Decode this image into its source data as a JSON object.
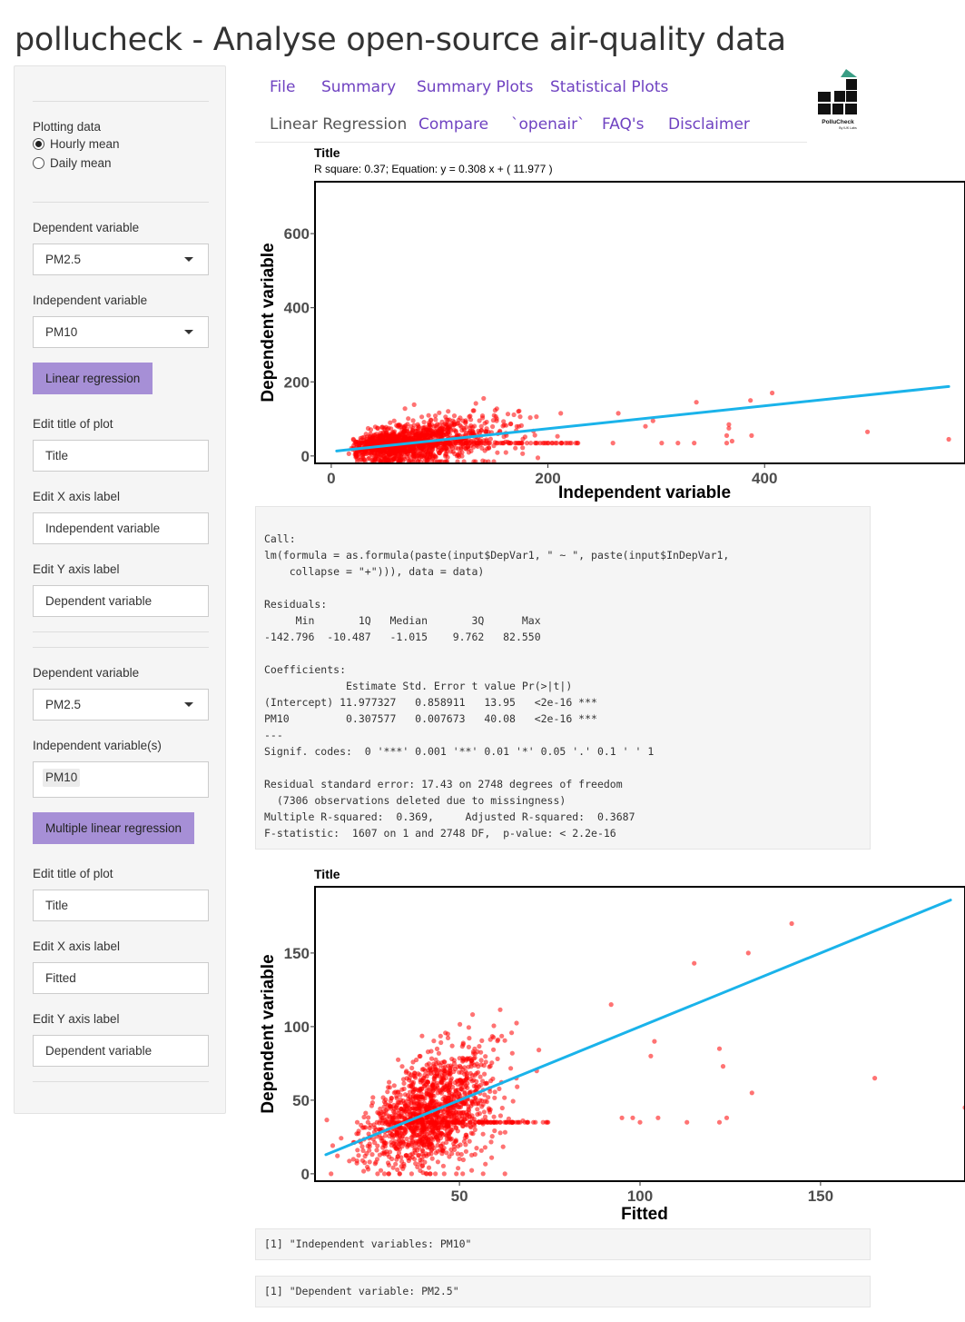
{
  "app_title": "pollucheck - Analyse open-source air-quality data",
  "logo": {
    "text": "PolluCheck",
    "subtext": "By IUK Labs",
    "colors": {
      "roof": "#3a9e85",
      "blocks": "#111111"
    }
  },
  "tabs": [
    {
      "label": "File",
      "active": false
    },
    {
      "label": "Summary",
      "active": false
    },
    {
      "label": "Summary Plots",
      "active": false
    },
    {
      "label": "Statistical Plots",
      "active": false
    },
    {
      "label": "Linear Regression",
      "active": true
    },
    {
      "label": "Compare",
      "active": false
    },
    {
      "label": "`openair`",
      "active": false
    },
    {
      "label": "FAQ's",
      "active": false
    },
    {
      "label": "Disclaimer",
      "active": false
    }
  ],
  "sidebar": {
    "plotting": {
      "label": "Plotting data",
      "options": [
        "Hourly mean",
        "Daily mean"
      ],
      "selected": "Hourly mean"
    },
    "lr": {
      "dep_label": "Dependent variable",
      "dep_value": "PM2.5",
      "indep_label": "Independent variable",
      "indep_value": "PM10",
      "button": "Linear regression",
      "title_label": "Edit title of plot",
      "title_value": "Title",
      "x_label": "Edit X axis label",
      "x_value": "Independent variable",
      "y_label": "Edit Y axis label",
      "y_value": "Dependent variable"
    },
    "mlr": {
      "dep_label": "Dependent variable",
      "dep_value": "PM2.5",
      "indep_label": "Independent variable(s)",
      "indep_value": "PM10",
      "button": "Multiple linear regression",
      "title_label": "Edit title of plot",
      "title_value": "Title",
      "x_label": "Edit X axis label",
      "x_value": "Fitted",
      "y_label": "Edit Y axis label",
      "y_value": "Dependent variable"
    }
  },
  "regression_output": [
    "Call:",
    "lm(formula = as.formula(paste(input$DepVar1, \" ~ \", paste(input$InDepVar1,",
    "    collapse = \"+\"))), data = data)",
    "",
    "Residuals:",
    "     Min       1Q   Median       3Q      Max ",
    "-142.796  -10.487   -1.015    9.762   82.550 ",
    "",
    "Coefficients:",
    "             Estimate Std. Error t value Pr(>|t|)    ",
    "(Intercept) 11.977327   0.858911   13.95   <2e-16 ***",
    "PM10         0.307577   0.007673   40.08   <2e-16 ***",
    "---",
    "Signif. codes:  0 '***' 0.001 '**' 0.01 '*' 0.05 '.' 0.1 ' ' 1",
    "",
    "Residual standard error: 17.43 on 2748 degrees of freedom",
    "  (7306 observations deleted due to missingness)",
    "Multiple R-squared:  0.369,\tAdjusted R-squared:  0.3687 ",
    "F-statistic:  1607 on 1 and 2748 DF,  p-value: < 2.2e-16"
  ],
  "mlr_output": {
    "independent": "[1] \"Independent variables: PM10\"",
    "dependent": "[1] \"Dependent variable: PM2.5\""
  },
  "colors": {
    "points": "#ff0000",
    "line": "#1ab3ea",
    "accent_button": "#a68fd6",
    "tab_link": "#6f42c1"
  },
  "chart_data": [
    {
      "type": "scatter",
      "title": "Title",
      "subtitle": "R square: 0.37; Equation: y =  0.308 x + ( 11.977 )",
      "xlabel": "Independent variable",
      "ylabel": "Dependent variable",
      "xlim": [
        -15,
        585
      ],
      "ylim": [
        -20,
        740
      ],
      "xticks": [
        0,
        200,
        400
      ],
      "yticks": [
        0,
        200,
        400,
        600
      ],
      "grid": false,
      "fit_line": {
        "slope": 0.308,
        "intercept": 11.977,
        "x_range": [
          5,
          570
        ]
      },
      "series": [
        {
          "cluster": {
            "x_range": [
              5,
              230
            ],
            "y_center_formula": "12 + 0.308x",
            "y_spread": 40
          },
          "outliers": [
            [
              260,
              35
            ],
            [
              265,
              115
            ],
            [
              290,
              80
            ],
            [
              297,
              95
            ],
            [
              305,
              35
            ],
            [
              320,
              35
            ],
            [
              335,
              35
            ],
            [
              337,
              145
            ],
            [
              365,
              35
            ],
            [
              365,
              55
            ],
            [
              367,
              85
            ],
            [
              367,
              75
            ],
            [
              370,
              40
            ],
            [
              387,
              150
            ],
            [
              388,
              55
            ],
            [
              407,
              170
            ],
            [
              495,
              65
            ],
            [
              570,
              45
            ]
          ]
        }
      ]
    },
    {
      "type": "scatter",
      "title": "Title",
      "xlabel": "Fitted",
      "ylabel": "Dependent variable",
      "xlim": [
        10,
        190
      ],
      "ylim": [
        -5,
        195
      ],
      "xticks": [
        50,
        100,
        150
      ],
      "yticks": [
        0,
        50,
        100,
        150
      ],
      "grid": false,
      "fit_line": {
        "slope": 1,
        "intercept": 0,
        "x_range": [
          13,
          186
        ]
      },
      "series": [
        {
          "cluster": {
            "x_range": [
              13,
              72
            ],
            "y_center_formula": "y = x",
            "y_spread": 18
          },
          "outliers": [
            [
              92,
              115
            ],
            [
              95,
              38
            ],
            [
              98,
              38
            ],
            [
              100,
              35
            ],
            [
              103,
              80
            ],
            [
              104,
              90
            ],
            [
              105,
              38
            ],
            [
              113,
              35
            ],
            [
              115,
              143
            ],
            [
              122,
              35
            ],
            [
              122,
              85
            ],
            [
              123,
              73
            ],
            [
              124,
              38
            ],
            [
              130,
              150
            ],
            [
              131,
              55
            ],
            [
              142,
              170
            ],
            [
              165,
              65
            ],
            [
              190,
              45
            ]
          ]
        }
      ]
    }
  ]
}
